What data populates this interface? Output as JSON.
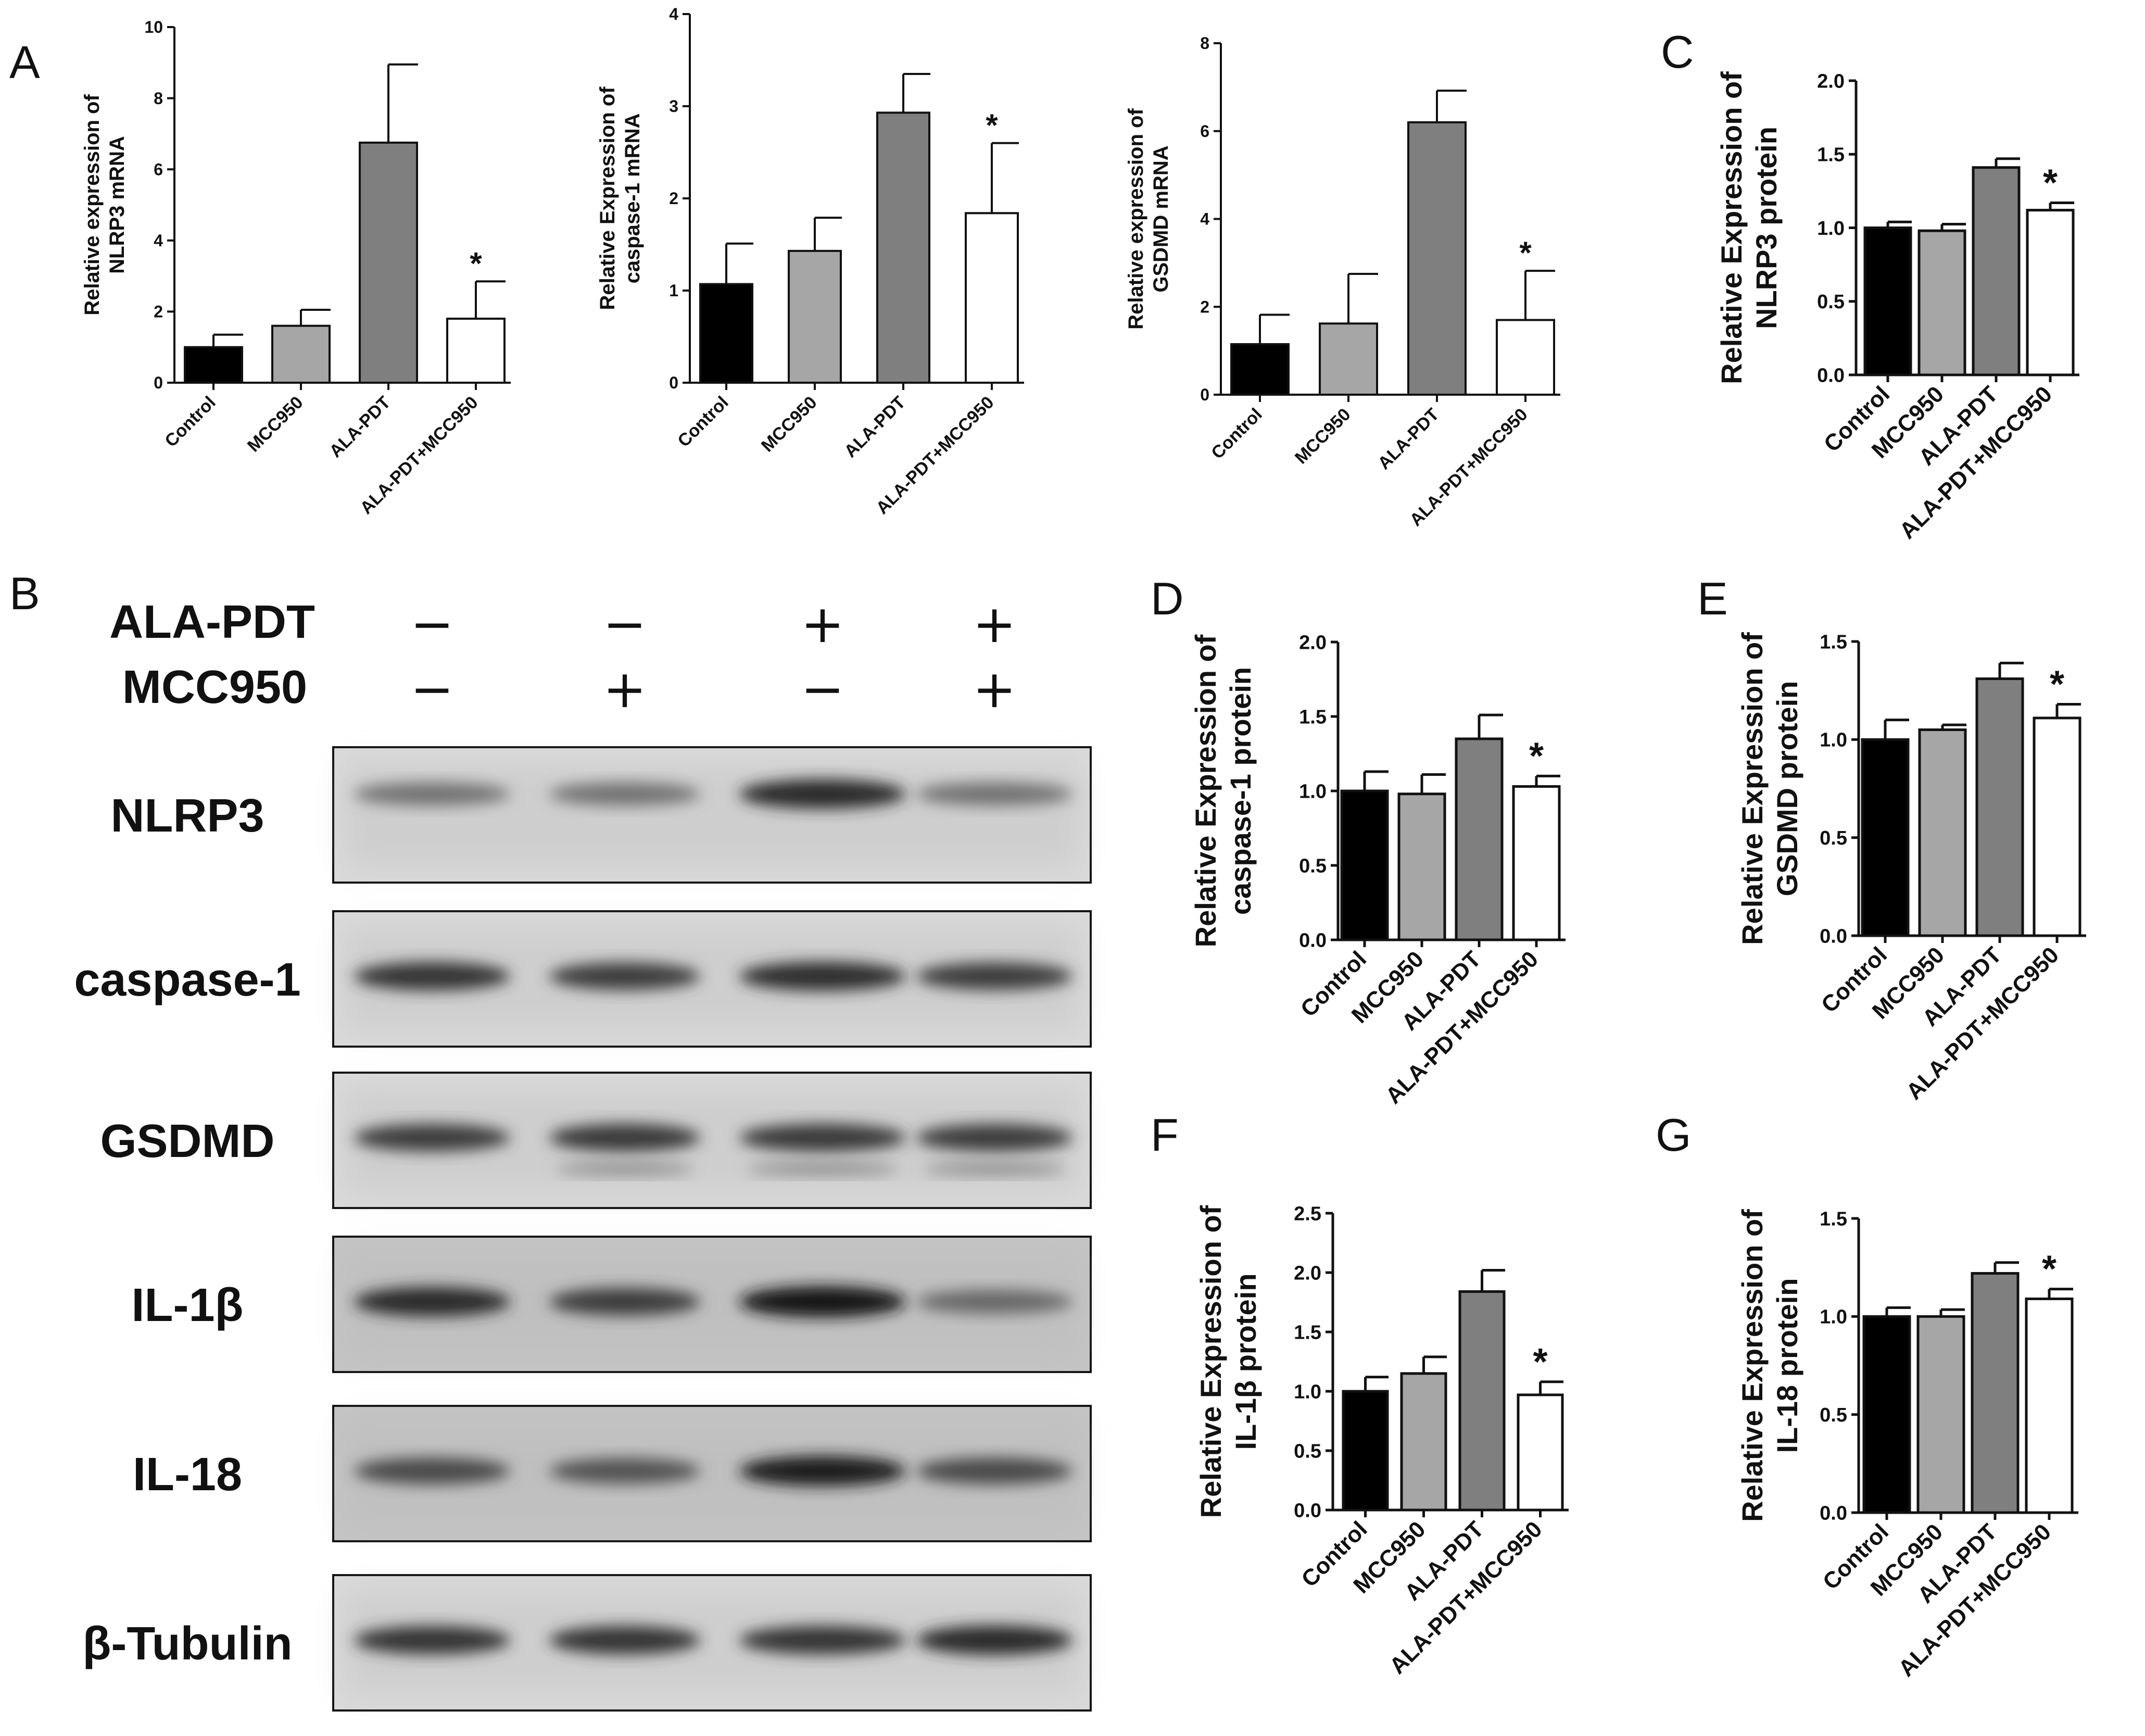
{
  "panels": [
    "A",
    "B",
    "C",
    "D",
    "E",
    "F",
    "G"
  ],
  "colors": {
    "Control": "#000000",
    "MCC950": "#a6a6a6",
    "ALA-PDT": "#7f7f7f",
    "ALA-PDT+MCC950": "#ffffff"
  },
  "chart_data": [
    {
      "panel": "A",
      "type": "bar",
      "title": "",
      "xlabel": "",
      "ylabel": "Relative expression of NLRP3 mRNA",
      "categories": [
        "Control",
        "MCC950",
        "ALA-PDT",
        "ALA-PDT+MCC950"
      ],
      "values": [
        1.0,
        1.6,
        6.75,
        1.8
      ],
      "errors": [
        0.35,
        0.45,
        2.2,
        1.05
      ],
      "ylim": [
        0,
        10
      ],
      "yticks": [
        "0",
        "2",
        "4",
        "6",
        "8",
        "10"
      ],
      "significance": [
        "",
        "",
        "",
        "*"
      ]
    },
    {
      "panel": "A",
      "type": "bar",
      "title": "",
      "xlabel": "",
      "ylabel": "Relative Expression of caspase-1 mRNA",
      "categories": [
        "Control",
        "MCC950",
        "ALA-PDT",
        "ALA-PDT+MCC950"
      ],
      "values": [
        1.07,
        1.43,
        2.93,
        1.84
      ],
      "errors": [
        0.44,
        0.36,
        0.42,
        0.76
      ],
      "ylim": [
        0,
        4
      ],
      "yticks": [
        "0",
        "1",
        "2",
        "3",
        "4"
      ],
      "significance": [
        "",
        "",
        "",
        "*"
      ]
    },
    {
      "panel": "A",
      "type": "bar",
      "title": "",
      "xlabel": "",
      "ylabel": "Relative expression of GSDMD mRNA",
      "categories": [
        "Control",
        "MCC950",
        "ALA-PDT",
        "ALA-PDT+MCC950"
      ],
      "values": [
        1.15,
        1.62,
        6.2,
        1.7
      ],
      "errors": [
        0.67,
        1.13,
        0.72,
        1.12
      ],
      "ylim": [
        0,
        8
      ],
      "yticks": [
        "0",
        "2",
        "4",
        "6",
        "8"
      ],
      "significance": [
        "",
        "",
        "",
        "*"
      ]
    },
    {
      "panel": "C",
      "type": "bar",
      "title": "",
      "xlabel": "",
      "ylabel": "Relative  Expression of NLRP3  protein",
      "categories": [
        "Control",
        "MCC950",
        "ALA-PDT",
        "ALA-PDT+MCC950"
      ],
      "values": [
        1.0,
        0.98,
        1.41,
        1.12
      ],
      "errors": [
        0.04,
        0.045,
        0.06,
        0.05
      ],
      "ylim": [
        0,
        2.0
      ],
      "yticks": [
        "0.0",
        "0.5",
        "1.0",
        "1.5",
        "2.0"
      ],
      "significance": [
        "",
        "",
        "",
        "*"
      ]
    },
    {
      "panel": "D",
      "type": "bar",
      "title": "",
      "xlabel": "",
      "ylabel": "Relative  Expression of caspase-1  protein",
      "categories": [
        "Control",
        "MCC950",
        "ALA-PDT",
        "ALA-PDT+MCC950"
      ],
      "values": [
        1.0,
        0.98,
        1.35,
        1.03
      ],
      "errors": [
        0.13,
        0.13,
        0.16,
        0.07
      ],
      "ylim": [
        0,
        2.0
      ],
      "yticks": [
        "0.0",
        "0.5",
        "1.0",
        "1.5",
        "2.0"
      ],
      "significance": [
        "",
        "",
        "",
        "*"
      ]
    },
    {
      "panel": "E",
      "type": "bar",
      "title": "",
      "xlabel": "",
      "ylabel": "Relative  Expression of GSDMD  protein",
      "categories": [
        "Control",
        "MCC950",
        "ALA-PDT",
        "ALA-PDT+MCC950"
      ],
      "values": [
        1.0,
        1.05,
        1.31,
        1.11
      ],
      "errors": [
        0.1,
        0.025,
        0.08,
        0.07
      ],
      "ylim": [
        0,
        1.5
      ],
      "yticks": [
        "0.0",
        "0.5",
        "1.0",
        "1.5"
      ],
      "significance": [
        "",
        "",
        "",
        "*"
      ]
    },
    {
      "panel": "F",
      "type": "bar",
      "title": "",
      "xlabel": "",
      "ylabel": "Relative  Expression of IL-1β  protein",
      "categories": [
        "Control",
        "MCC950",
        "ALA-PDT",
        "ALA-PDT+MCC950"
      ],
      "values": [
        1.0,
        1.15,
        1.84,
        0.97
      ],
      "errors": [
        0.12,
        0.14,
        0.18,
        0.11
      ],
      "ylim": [
        0,
        2.5
      ],
      "yticks": [
        "0.0",
        "0.5",
        "1.0",
        "1.5",
        "2.0",
        "2.5"
      ],
      "significance": [
        "",
        "",
        "",
        "*"
      ]
    },
    {
      "panel": "G",
      "type": "bar",
      "title": "",
      "xlabel": "",
      "ylabel": "Relative  Expression of IL-18  protein",
      "categories": [
        "Control",
        "MCC950",
        "ALA-PDT",
        "ALA-PDT+MCC950"
      ],
      "values": [
        1.0,
        1.0,
        1.22,
        1.09
      ],
      "errors": [
        0.045,
        0.035,
        0.055,
        0.05
      ],
      "ylim": [
        0,
        1.5
      ],
      "yticks": [
        "0.0",
        "0.5",
        "1.0",
        "1.5"
      ],
      "significance": [
        "",
        "",
        "",
        "*"
      ]
    }
  ],
  "western_blot": {
    "treatments": [
      {
        "name": "ALA-PDT",
        "signs": [
          "−",
          "−",
          "+",
          "+"
        ]
      },
      {
        "name": "MCC950",
        "signs": [
          "−",
          "+",
          "−",
          "+"
        ]
      }
    ],
    "proteins": [
      "NLRP3",
      "caspase-1",
      "GSDMD",
      "IL-1β",
      "IL-18",
      "β-Tubulin"
    ],
    "band_intensity": [
      [
        0.55,
        0.55,
        0.9,
        0.55
      ],
      [
        0.85,
        0.8,
        0.88,
        0.8
      ],
      [
        0.8,
        0.82,
        0.82,
        0.8
      ],
      [
        0.9,
        0.8,
        1.0,
        0.6
      ],
      [
        0.75,
        0.7,
        0.95,
        0.75
      ],
      [
        0.85,
        0.85,
        0.85,
        0.9
      ]
    ]
  }
}
